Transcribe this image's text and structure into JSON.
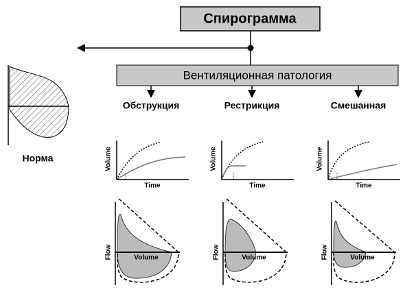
{
  "title": "Спирограмма",
  "pathology": "Вентиляционная патология",
  "normal": "Норма",
  "types": [
    {
      "label": "Обструкция",
      "spirogram": {
        "y_label": "Volume",
        "x_label": "Time"
      },
      "flow_volume": {
        "y_label": "Flow",
        "x_label": "Volume"
      }
    },
    {
      "label": "Рестрикция",
      "spirogram": {
        "y_label": "Volume",
        "x_label": "Time"
      },
      "flow_volume": {
        "y_label": "Flow",
        "x_label": "Volume"
      }
    },
    {
      "label": "Смешанная",
      "spirogram": {
        "y_label": "Volume",
        "x_label": "Time"
      },
      "flow_volume": {
        "y_label": "Flow",
        "x_label": "Volume"
      }
    }
  ]
}
